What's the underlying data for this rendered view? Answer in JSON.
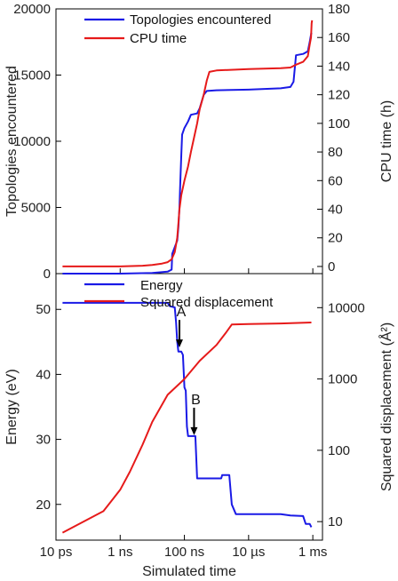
{
  "chart_data": [
    {
      "type": "line",
      "x_scale": "log",
      "x_label": "Simulated time",
      "x_ticks": [
        "10 ps",
        "1 ns",
        "100 ns",
        "10 µs",
        "1 ms"
      ],
      "x_tick_values_s": [
        1e-11,
        1e-09,
        1e-07,
        1e-05,
        0.001
      ],
      "xlim_s": [
        1e-11,
        0.002
      ],
      "y_left": {
        "label": "Topologies encountered",
        "ticks": [
          "0",
          "5000",
          "10000",
          "15000",
          "20000"
        ],
        "lim": [
          0,
          20000
        ]
      },
      "y_right": {
        "label": "CPU time (h)",
        "ticks": [
          "0",
          "20",
          "40",
          "60",
          "80",
          "100",
          "120",
          "140",
          "160",
          "180"
        ],
        "lim": [
          -5,
          180
        ]
      },
      "legend": "top-left",
      "series": [
        {
          "name": "Topologies encountered",
          "color": "#1a1ae6",
          "axis": "left",
          "points": [
            [
              1.6e-11,
              0
            ],
            [
              1e-09,
              0
            ],
            [
              1e-08,
              50
            ],
            [
              3e-08,
              150
            ],
            [
              4e-08,
              300
            ],
            [
              4.2e-08,
              1500
            ],
            [
              5e-08,
              2000
            ],
            [
              6e-08,
              2500
            ],
            [
              6.5e-08,
              3500
            ],
            [
              7e-08,
              5000
            ],
            [
              7.5e-08,
              7000
            ],
            [
              8e-08,
              9000
            ],
            [
              8.5e-08,
              10500
            ],
            [
              1e-07,
              11000
            ],
            [
              1.3e-07,
              11500
            ],
            [
              1.6e-07,
              12000
            ],
            [
              2.5e-07,
              12100
            ],
            [
              3e-07,
              12500
            ],
            [
              4e-07,
              13500
            ],
            [
              5e-07,
              13800
            ],
            [
              1e-06,
              13850
            ],
            [
              1e-05,
              13900
            ],
            [
              0.0001,
              14000
            ],
            [
              0.0002,
              14100
            ],
            [
              0.00025,
              14500
            ],
            [
              0.0003,
              16500
            ],
            [
              0.0005,
              16600
            ],
            [
              0.0007,
              16800
            ],
            [
              0.0008,
              17500
            ],
            [
              0.0009,
              18200
            ]
          ]
        },
        {
          "name": "CPU time",
          "color": "#e61a1a",
          "axis": "right",
          "points": [
            [
              1.6e-11,
              0
            ],
            [
              1e-09,
              0
            ],
            [
              5e-09,
              0.5
            ],
            [
              1e-08,
              1
            ],
            [
              2e-08,
              2
            ],
            [
              3e-08,
              3
            ],
            [
              4e-08,
              5
            ],
            [
              5e-08,
              10
            ],
            [
              6e-08,
              20
            ],
            [
              6.5e-08,
              30
            ],
            [
              7e-08,
              40
            ],
            [
              8e-08,
              50
            ],
            [
              1e-07,
              60
            ],
            [
              1.3e-07,
              70
            ],
            [
              1.6e-07,
              80
            ],
            [
              2e-07,
              90
            ],
            [
              2.5e-07,
              100
            ],
            [
              3e-07,
              110
            ],
            [
              4e-07,
              120
            ],
            [
              5e-07,
              130
            ],
            [
              6e-07,
              136
            ],
            [
              1e-06,
              137
            ],
            [
              1e-05,
              138
            ],
            [
              0.0001,
              138.5
            ],
            [
              0.0002,
              139
            ],
            [
              0.0003,
              141
            ],
            [
              0.0005,
              143
            ],
            [
              0.0007,
              147
            ],
            [
              0.0008,
              155
            ],
            [
              0.00088,
              160
            ],
            [
              0.00092,
              170
            ],
            [
              0.00095,
              172
            ]
          ]
        }
      ]
    },
    {
      "type": "line",
      "x_scale": "log",
      "x_label": "Simulated time",
      "x_ticks": [
        "10 ps",
        "1 ns",
        "100 ns",
        "10 µs",
        "1 ms"
      ],
      "x_tick_values_s": [
        1e-11,
        1e-09,
        1e-07,
        1e-05,
        0.001
      ],
      "xlim_s": [
        1e-11,
        0.002
      ],
      "y_left": {
        "label": "Energy (eV)",
        "ticks": [
          "20",
          "30",
          "40",
          "50"
        ],
        "lim": [
          14.5,
          55.5
        ]
      },
      "y_right": {
        "label": "Squared displacement (Å²)",
        "ticks": [
          "10",
          "100",
          "1000",
          "10000"
        ],
        "tick_values": [
          10,
          100,
          1000,
          10000
        ],
        "scale": "log",
        "lim": [
          5.5,
          30000
        ]
      },
      "legend": "top-left",
      "annotations": [
        {
          "text": "A",
          "x_s": 7e-08,
          "y_ev": 44
        },
        {
          "text": "B",
          "x_s": 2e-07,
          "y_ev": 30.5
        }
      ],
      "series": [
        {
          "name": "Energy",
          "color": "#1a1ae6",
          "axis": "left",
          "points": [
            [
              1.6e-11,
              51
            ],
            [
              3e-08,
              51
            ],
            [
              3.5e-08,
              50.5
            ],
            [
              5e-08,
              50.3
            ],
            [
              5.5e-08,
              48
            ],
            [
              6e-08,
              45
            ],
            [
              6.5e-08,
              43.5
            ],
            [
              8e-08,
              43.5
            ],
            [
              9e-08,
              43
            ],
            [
              1e-07,
              38
            ],
            [
              1.1e-07,
              37.5
            ],
            [
              1.2e-07,
              32
            ],
            [
              1.3e-07,
              30.5
            ],
            [
              1.5e-07,
              30.5
            ],
            [
              2.2e-07,
              30.5
            ],
            [
              2.5e-07,
              24
            ],
            [
              1.4e-06,
              24
            ],
            [
              1.5e-06,
              24.5
            ],
            [
              2.5e-06,
              24.5
            ],
            [
              3e-06,
              20
            ],
            [
              4e-06,
              18.5
            ],
            [
              0.0001,
              18.5
            ],
            [
              0.0002,
              18.3
            ],
            [
              0.0005,
              18.2
            ],
            [
              0.0006,
              17
            ],
            [
              0.0008,
              17
            ],
            [
              0.0009,
              16.5
            ]
          ]
        },
        {
          "name": "Squared displacement",
          "color": "#e61a1a",
          "axis": "right",
          "points": [
            [
              1.6e-11,
              7
            ],
            [
              3e-10,
              14
            ],
            [
              1e-09,
              28
            ],
            [
              2e-09,
              50
            ],
            [
              5e-09,
              120
            ],
            [
              1e-08,
              250
            ],
            [
              3e-08,
              600
            ],
            [
              1e-07,
              1000
            ],
            [
              3e-07,
              1800
            ],
            [
              1e-06,
              3000
            ],
            [
              2e-06,
              4500
            ],
            [
              3e-06,
              5800
            ],
            [
              1e-05,
              5900
            ],
            [
              0.0001,
              6000
            ],
            [
              0.0009,
              6200
            ]
          ]
        }
      ]
    }
  ],
  "colors": {
    "blue": "#1a1ae6",
    "red": "#e61a1a"
  }
}
